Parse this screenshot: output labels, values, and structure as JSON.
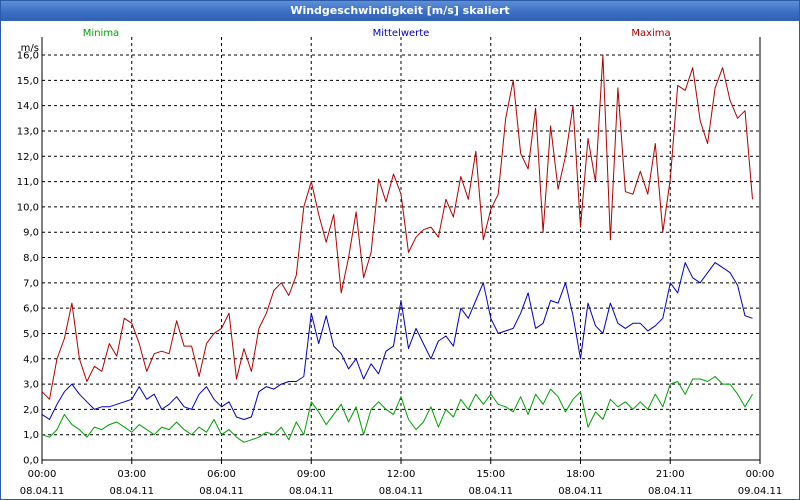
{
  "window": {
    "title": "Windgeschwindigkeit [m/s] skaliert"
  },
  "chart_data": {
    "type": "line",
    "title": "Windgeschwindigkeit [m/s] skaliert",
    "ylabel": "m/s",
    "xlabel": "",
    "ylim": [
      0,
      16
    ],
    "xlim": [
      0,
      24
    ],
    "y_ticks": [
      "0,0",
      "1,0",
      "2,0",
      "3,0",
      "4,0",
      "5,0",
      "6,0",
      "7,0",
      "8,0",
      "9,0",
      "10,0",
      "11,0",
      "12,0",
      "13,0",
      "14,0",
      "15,0",
      "16,0"
    ],
    "x_ticks": [
      {
        "time": "00:00",
        "date": "08.04.11",
        "hour": 0
      },
      {
        "time": "03:00",
        "date": "08.04.11",
        "hour": 3
      },
      {
        "time": "06:00",
        "date": "08.04.11",
        "hour": 6
      },
      {
        "time": "09:00",
        "date": "08.04.11",
        "hour": 9
      },
      {
        "time": "12:00",
        "date": "08.04.11",
        "hour": 12
      },
      {
        "time": "15:00",
        "date": "08.04.11",
        "hour": 15
      },
      {
        "time": "18:00",
        "date": "08.04.11",
        "hour": 18
      },
      {
        "time": "21:00",
        "date": "08.04.11",
        "hour": 21
      },
      {
        "time": "00:00",
        "date": "09.04.11",
        "hour": 24
      }
    ],
    "grid": true,
    "legend_position": "top",
    "series": [
      {
        "name": "Minima",
        "color": "#00a000",
        "points": [
          [
            0,
            1.0
          ],
          [
            0.25,
            0.9
          ],
          [
            0.5,
            1.2
          ],
          [
            0.75,
            1.8
          ],
          [
            1,
            1.4
          ],
          [
            1.25,
            1.2
          ],
          [
            1.5,
            0.9
          ],
          [
            1.75,
            1.3
          ],
          [
            2,
            1.2
          ],
          [
            2.25,
            1.4
          ],
          [
            2.5,
            1.5
          ],
          [
            2.75,
            1.3
          ],
          [
            3,
            1.1
          ],
          [
            3.25,
            1.4
          ],
          [
            3.5,
            1.2
          ],
          [
            3.75,
            1.0
          ],
          [
            4,
            1.3
          ],
          [
            4.25,
            1.2
          ],
          [
            4.5,
            1.5
          ],
          [
            4.75,
            1.2
          ],
          [
            5,
            1.0
          ],
          [
            5.25,
            1.3
          ],
          [
            5.5,
            1.1
          ],
          [
            5.75,
            1.6
          ],
          [
            6,
            1.0
          ],
          [
            6.25,
            1.2
          ],
          [
            6.5,
            0.9
          ],
          [
            6.75,
            0.7
          ],
          [
            7,
            0.8
          ],
          [
            7.25,
            0.9
          ],
          [
            7.5,
            1.1
          ],
          [
            7.75,
            1.0
          ],
          [
            8,
            1.3
          ],
          [
            8.25,
            0.8
          ],
          [
            8.5,
            1.5
          ],
          [
            8.75,
            1.0
          ],
          [
            9,
            2.3
          ],
          [
            9.25,
            1.9
          ],
          [
            9.5,
            1.4
          ],
          [
            9.75,
            1.8
          ],
          [
            10,
            2.2
          ],
          [
            10.25,
            1.5
          ],
          [
            10.5,
            2.1
          ],
          [
            10.75,
            1.0
          ],
          [
            11,
            2.0
          ],
          [
            11.25,
            2.3
          ],
          [
            11.5,
            2.0
          ],
          [
            11.75,
            1.8
          ],
          [
            12,
            2.5
          ],
          [
            12.25,
            1.6
          ],
          [
            12.5,
            1.2
          ],
          [
            12.75,
            1.5
          ],
          [
            13,
            2.1
          ],
          [
            13.25,
            1.3
          ],
          [
            13.5,
            2.0
          ],
          [
            13.75,
            1.7
          ],
          [
            14,
            2.4
          ],
          [
            14.25,
            2.0
          ],
          [
            14.5,
            2.6
          ],
          [
            14.75,
            2.2
          ],
          [
            15,
            2.6
          ],
          [
            15.25,
            2.2
          ],
          [
            15.5,
            2.1
          ],
          [
            15.75,
            1.9
          ],
          [
            16,
            2.5
          ],
          [
            16.25,
            1.8
          ],
          [
            16.5,
            2.6
          ],
          [
            16.75,
            2.2
          ],
          [
            17,
            2.8
          ],
          [
            17.25,
            2.5
          ],
          [
            17.5,
            1.9
          ],
          [
            17.75,
            2.4
          ],
          [
            18,
            2.7
          ],
          [
            18.25,
            1.3
          ],
          [
            18.5,
            1.9
          ],
          [
            18.75,
            1.6
          ],
          [
            19,
            2.4
          ],
          [
            19.25,
            2.1
          ],
          [
            19.5,
            2.3
          ],
          [
            19.75,
            2.0
          ],
          [
            20,
            2.3
          ],
          [
            20.25,
            2.0
          ],
          [
            20.5,
            2.6
          ],
          [
            20.75,
            2.1
          ],
          [
            21,
            3.0
          ],
          [
            21.25,
            3.1
          ],
          [
            21.5,
            2.6
          ],
          [
            21.75,
            3.2
          ],
          [
            22,
            3.2
          ],
          [
            22.25,
            3.1
          ],
          [
            22.5,
            3.3
          ],
          [
            22.75,
            3.0
          ],
          [
            23,
            3.0
          ],
          [
            23.25,
            2.6
          ],
          [
            23.5,
            2.1
          ],
          [
            23.75,
            2.6
          ]
        ]
      },
      {
        "name": "Mittelwerte",
        "color": "#0000c0",
        "points": [
          [
            0,
            1.8
          ],
          [
            0.25,
            1.6
          ],
          [
            0.5,
            2.2
          ],
          [
            0.75,
            2.7
          ],
          [
            1,
            3.0
          ],
          [
            1.25,
            2.6
          ],
          [
            1.5,
            2.3
          ],
          [
            1.75,
            2.0
          ],
          [
            2,
            2.1
          ],
          [
            2.25,
            2.1
          ],
          [
            2.5,
            2.2
          ],
          [
            2.75,
            2.3
          ],
          [
            3,
            2.4
          ],
          [
            3.25,
            2.9
          ],
          [
            3.5,
            2.4
          ],
          [
            3.75,
            2.6
          ],
          [
            4,
            2.0
          ],
          [
            4.25,
            2.2
          ],
          [
            4.5,
            2.5
          ],
          [
            4.75,
            2.1
          ],
          [
            5,
            2.0
          ],
          [
            5.25,
            2.6
          ],
          [
            5.5,
            2.9
          ],
          [
            5.75,
            2.4
          ],
          [
            6,
            2.1
          ],
          [
            6.25,
            2.3
          ],
          [
            6.5,
            1.7
          ],
          [
            6.75,
            1.6
          ],
          [
            7,
            1.7
          ],
          [
            7.25,
            2.7
          ],
          [
            7.5,
            2.9
          ],
          [
            7.75,
            2.8
          ],
          [
            8,
            3.0
          ],
          [
            8.25,
            3.1
          ],
          [
            8.5,
            3.1
          ],
          [
            8.75,
            3.3
          ],
          [
            9,
            5.8
          ],
          [
            9.25,
            4.6
          ],
          [
            9.5,
            5.7
          ],
          [
            9.75,
            4.5
          ],
          [
            10,
            4.2
          ],
          [
            10.25,
            3.6
          ],
          [
            10.5,
            4.0
          ],
          [
            10.75,
            3.2
          ],
          [
            11,
            3.8
          ],
          [
            11.25,
            3.4
          ],
          [
            11.5,
            4.3
          ],
          [
            11.75,
            4.5
          ],
          [
            12,
            6.3
          ],
          [
            12.25,
            4.4
          ],
          [
            12.5,
            5.2
          ],
          [
            12.75,
            4.6
          ],
          [
            13,
            4.0
          ],
          [
            13.25,
            4.7
          ],
          [
            13.5,
            4.9
          ],
          [
            13.75,
            4.5
          ],
          [
            14,
            6.0
          ],
          [
            14.25,
            5.6
          ],
          [
            14.5,
            6.3
          ],
          [
            14.75,
            7.0
          ],
          [
            15,
            5.6
          ],
          [
            15.25,
            5.0
          ],
          [
            15.75,
            5.2
          ],
          [
            16,
            5.8
          ],
          [
            16.25,
            6.6
          ],
          [
            16.5,
            5.2
          ],
          [
            16.75,
            5.4
          ],
          [
            17,
            6.3
          ],
          [
            17.25,
            6.2
          ],
          [
            17.5,
            7.0
          ],
          [
            17.75,
            5.7
          ],
          [
            18,
            4.0
          ],
          [
            18.25,
            6.2
          ],
          [
            18.5,
            5.3
          ],
          [
            18.75,
            5.0
          ],
          [
            19,
            6.2
          ],
          [
            19.25,
            5.4
          ],
          [
            19.5,
            5.2
          ],
          [
            19.75,
            5.4
          ],
          [
            20,
            5.4
          ],
          [
            20.25,
            5.1
          ],
          [
            20.5,
            5.3
          ],
          [
            20.75,
            5.6
          ],
          [
            21,
            7.0
          ],
          [
            21.25,
            6.6
          ],
          [
            21.5,
            7.8
          ],
          [
            21.75,
            7.2
          ],
          [
            22,
            7.0
          ],
          [
            22.25,
            7.4
          ],
          [
            22.5,
            7.8
          ],
          [
            22.75,
            7.6
          ],
          [
            23,
            7.4
          ],
          [
            23.25,
            6.9
          ],
          [
            23.5,
            5.7
          ],
          [
            23.75,
            5.6
          ]
        ]
      },
      {
        "name": "Maxima",
        "color": "#b00000",
        "points": [
          [
            0,
            2.7
          ],
          [
            0.25,
            2.4
          ],
          [
            0.5,
            4.0
          ],
          [
            0.75,
            4.8
          ],
          [
            1,
            6.2
          ],
          [
            1.25,
            4.0
          ],
          [
            1.5,
            3.1
          ],
          [
            1.75,
            3.7
          ],
          [
            2,
            3.5
          ],
          [
            2.25,
            4.6
          ],
          [
            2.5,
            4.1
          ],
          [
            2.75,
            5.6
          ],
          [
            3,
            5.4
          ],
          [
            3.25,
            4.6
          ],
          [
            3.5,
            3.5
          ],
          [
            3.75,
            4.2
          ],
          [
            4,
            4.3
          ],
          [
            4.25,
            4.2
          ],
          [
            4.5,
            5.5
          ],
          [
            4.75,
            4.5
          ],
          [
            5,
            4.5
          ],
          [
            5.25,
            3.3
          ],
          [
            5.5,
            4.6
          ],
          [
            5.75,
            5.0
          ],
          [
            6,
            5.2
          ],
          [
            6.25,
            5.8
          ],
          [
            6.5,
            3.2
          ],
          [
            6.75,
            4.4
          ],
          [
            7,
            3.5
          ],
          [
            7.25,
            5.2
          ],
          [
            7.5,
            5.8
          ],
          [
            7.75,
            6.7
          ],
          [
            8,
            7.0
          ],
          [
            8.25,
            6.5
          ],
          [
            8.5,
            7.3
          ],
          [
            8.75,
            10.0
          ],
          [
            9,
            11.0
          ],
          [
            9.25,
            9.7
          ],
          [
            9.5,
            8.6
          ],
          [
            9.75,
            9.7
          ],
          [
            10,
            6.6
          ],
          [
            10.25,
            8.0
          ],
          [
            10.5,
            9.8
          ],
          [
            10.75,
            7.2
          ],
          [
            11,
            8.2
          ],
          [
            11.25,
            11.1
          ],
          [
            11.5,
            10.2
          ],
          [
            11.75,
            11.3
          ],
          [
            12,
            10.5
          ],
          [
            12.25,
            8.2
          ],
          [
            12.5,
            8.8
          ],
          [
            12.75,
            9.1
          ],
          [
            13,
            9.2
          ],
          [
            13.25,
            8.8
          ],
          [
            13.5,
            10.3
          ],
          [
            13.75,
            9.6
          ],
          [
            14,
            11.2
          ],
          [
            14.25,
            10.3
          ],
          [
            14.5,
            12.2
          ],
          [
            14.75,
            8.7
          ],
          [
            15,
            9.9
          ],
          [
            15.25,
            10.5
          ],
          [
            15.5,
            13.5
          ],
          [
            15.75,
            15.0
          ],
          [
            16,
            12.1
          ],
          [
            16.25,
            11.5
          ],
          [
            16.5,
            13.9
          ],
          [
            16.75,
            9.0
          ],
          [
            17,
            13.2
          ],
          [
            17.25,
            10.7
          ],
          [
            17.5,
            12.0
          ],
          [
            17.75,
            14.0
          ],
          [
            18,
            9.2
          ],
          [
            18.25,
            12.7
          ],
          [
            18.5,
            11.0
          ],
          [
            18.75,
            16.0
          ],
          [
            19,
            8.7
          ],
          [
            19.25,
            14.7
          ],
          [
            19.5,
            10.6
          ],
          [
            19.75,
            10.5
          ],
          [
            20,
            11.4
          ],
          [
            20.25,
            10.5
          ],
          [
            20.5,
            12.5
          ],
          [
            20.75,
            9.0
          ],
          [
            21,
            11.1
          ],
          [
            21.25,
            14.8
          ],
          [
            21.5,
            14.6
          ],
          [
            21.75,
            15.5
          ],
          [
            22,
            13.4
          ],
          [
            22.25,
            12.5
          ],
          [
            22.5,
            14.7
          ],
          [
            22.75,
            15.5
          ],
          [
            23,
            14.2
          ],
          [
            23.25,
            13.5
          ],
          [
            23.5,
            13.8
          ],
          [
            23.75,
            10.3
          ]
        ]
      }
    ]
  }
}
